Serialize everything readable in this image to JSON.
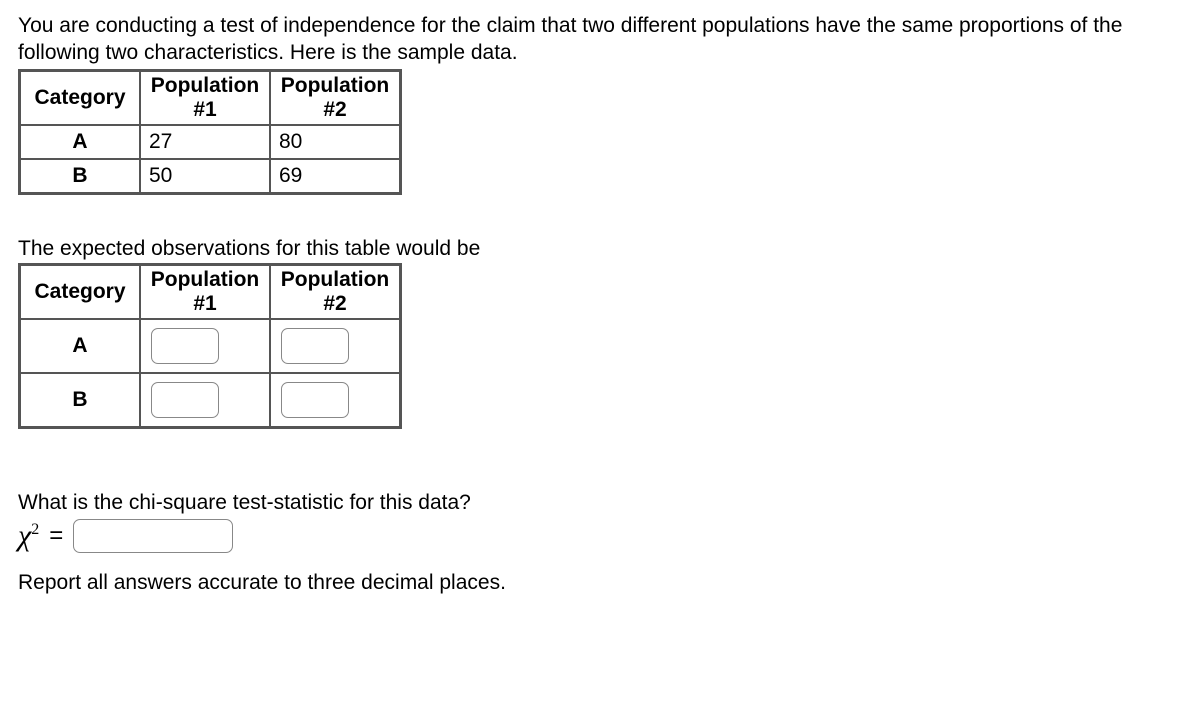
{
  "intro": "You are conducting a test of independence for the claim that two different populations have the same proportions of the following two characteristics. Here is the sample data.",
  "table1": {
    "headers": {
      "category": "Category",
      "pop1": "Population\n#1",
      "pop2": "Population\n#2"
    },
    "rows": [
      {
        "cat": "A",
        "p1": "27",
        "p2": "80"
      },
      {
        "cat": "B",
        "p1": "50",
        "p2": "69"
      }
    ]
  },
  "expected_prompt": "The expected observations for this table would be",
  "table2": {
    "headers": {
      "category": "Category",
      "pop1": "Population\n#1",
      "pop2": "Population\n#2"
    },
    "rows": [
      {
        "cat": "A"
      },
      {
        "cat": "B"
      }
    ]
  },
  "chi_prompt": "What is the chi-square test-statistic for this data?",
  "chi_symbol": "χ",
  "chi_exp": "2",
  "equals": "=",
  "footer": "Report all answers accurate to three decimal places."
}
